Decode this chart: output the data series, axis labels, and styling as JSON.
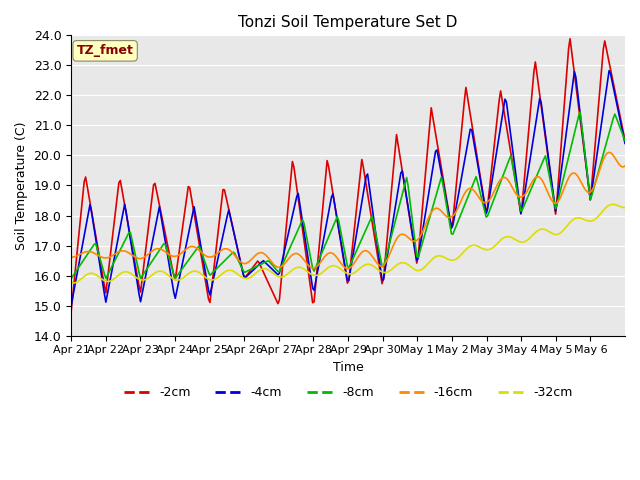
{
  "title": "Tonzi Soil Temperature Set D",
  "xlabel": "Time",
  "ylabel": "Soil Temperature (C)",
  "ylim": [
    14.0,
    24.0
  ],
  "yticks": [
    14.0,
    15.0,
    16.0,
    17.0,
    18.0,
    19.0,
    20.0,
    21.0,
    22.0,
    23.0,
    24.0
  ],
  "bg_color": "#e8e8e8",
  "legend_label": "TZ_fmet",
  "series_colors": {
    "-2cm": "#dd0000",
    "-4cm": "#0000dd",
    "-8cm": "#00bb00",
    "-16cm": "#ff8800",
    "-32cm": "#dddd00"
  },
  "series_labels": [
    "-2cm",
    "-4cm",
    "-8cm",
    "-16cm",
    "-32cm"
  ],
  "x_tick_labels": [
    "Apr 21",
    "Apr 22",
    "Apr 23",
    "Apr 24",
    "Apr 25",
    "Apr 26",
    "Apr 27",
    "Apr 28",
    "Apr 29",
    "Apr 30",
    "May 1",
    "May 2",
    "May 3",
    "May 4",
    "May 5",
    "May 6"
  ]
}
